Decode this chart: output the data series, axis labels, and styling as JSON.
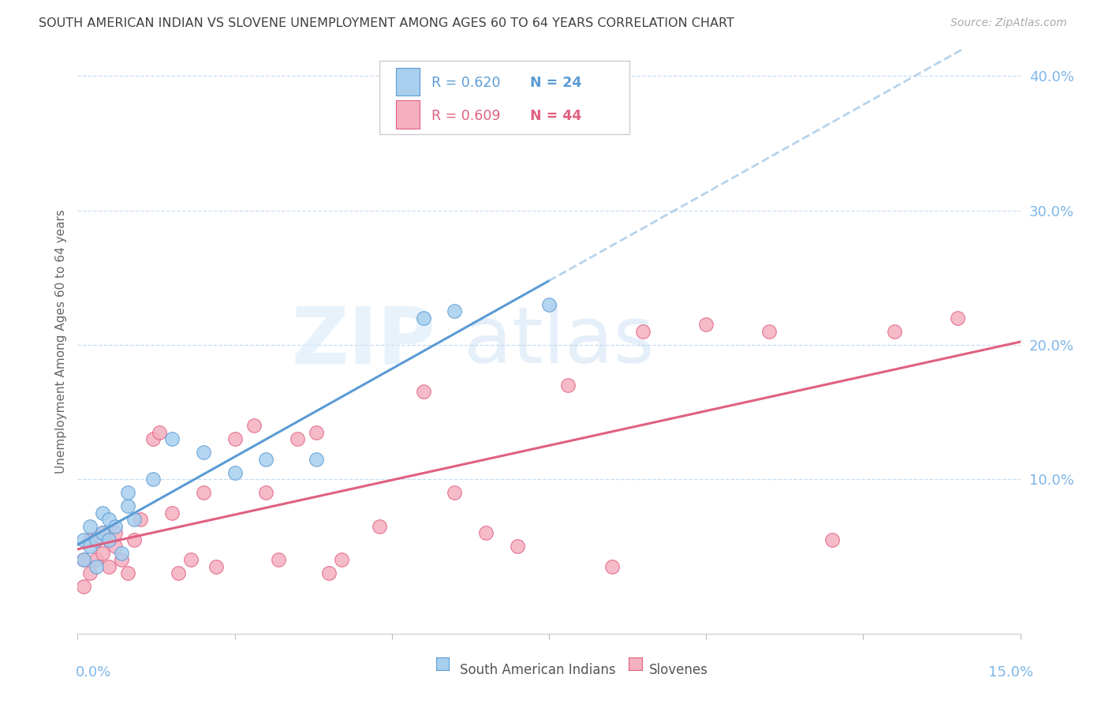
{
  "title": "SOUTH AMERICAN INDIAN VS SLOVENE UNEMPLOYMENT AMONG AGES 60 TO 64 YEARS CORRELATION CHART",
  "source": "Source: ZipAtlas.com",
  "ylabel": "Unemployment Among Ages 60 to 64 years",
  "xlim": [
    0.0,
    0.15
  ],
  "ylim": [
    -0.015,
    0.42
  ],
  "blue_r": "R = 0.620",
  "blue_n": "N = 24",
  "pink_r": "R = 0.609",
  "pink_n": "N = 44",
  "blue_fill": "#A8CFEE",
  "blue_edge": "#5B9BD5",
  "pink_fill": "#F5B0C0",
  "pink_edge": "#E06080",
  "blue_line_color": "#5B9BD5",
  "pink_line_color": "#E06080",
  "blue_dash_color": "#AACCE8",
  "axis_label_color": "#7EB6E8",
  "grid_color": "#C8DDF0",
  "title_color": "#404040",
  "source_color": "#AAAAAA",
  "legend_label_color": "#555555",
  "blue_x": [
    0.001,
    0.001,
    0.002,
    0.002,
    0.003,
    0.003,
    0.004,
    0.004,
    0.005,
    0.005,
    0.006,
    0.007,
    0.008,
    0.008,
    0.009,
    0.012,
    0.015,
    0.02,
    0.025,
    0.03,
    0.038,
    0.055,
    0.06,
    0.075
  ],
  "blue_y": [
    0.04,
    0.055,
    0.05,
    0.065,
    0.035,
    0.055,
    0.06,
    0.075,
    0.055,
    0.07,
    0.065,
    0.045,
    0.08,
    0.09,
    0.07,
    0.1,
    0.13,
    0.12,
    0.105,
    0.115,
    0.115,
    0.22,
    0.225,
    0.23
  ],
  "pink_x": [
    0.001,
    0.001,
    0.002,
    0.002,
    0.003,
    0.003,
    0.004,
    0.004,
    0.005,
    0.005,
    0.006,
    0.006,
    0.007,
    0.008,
    0.009,
    0.01,
    0.012,
    0.013,
    0.015,
    0.016,
    0.018,
    0.02,
    0.022,
    0.025,
    0.028,
    0.03,
    0.032,
    0.035,
    0.038,
    0.04,
    0.042,
    0.048,
    0.055,
    0.06,
    0.065,
    0.07,
    0.078,
    0.085,
    0.09,
    0.1,
    0.11,
    0.12,
    0.13,
    0.14
  ],
  "pink_y": [
    0.02,
    0.04,
    0.03,
    0.055,
    0.04,
    0.055,
    0.045,
    0.06,
    0.035,
    0.055,
    0.05,
    0.06,
    0.04,
    0.03,
    0.055,
    0.07,
    0.13,
    0.135,
    0.075,
    0.03,
    0.04,
    0.09,
    0.035,
    0.13,
    0.14,
    0.09,
    0.04,
    0.13,
    0.135,
    0.03,
    0.04,
    0.065,
    0.165,
    0.09,
    0.06,
    0.05,
    0.17,
    0.035,
    0.21,
    0.215,
    0.21,
    0.055,
    0.21,
    0.22
  ],
  "yticks": [
    0.1,
    0.2,
    0.3,
    0.4
  ],
  "ytick_labels": [
    "10.0%",
    "20.0%",
    "30.0%",
    "40.0%"
  ],
  "xtick_positions": [
    0.0,
    0.025,
    0.05,
    0.075,
    0.1,
    0.125,
    0.15
  ],
  "blue_line_xrange": [
    0.0,
    0.075
  ],
  "blue_dash_xrange": [
    0.075,
    0.15
  ]
}
